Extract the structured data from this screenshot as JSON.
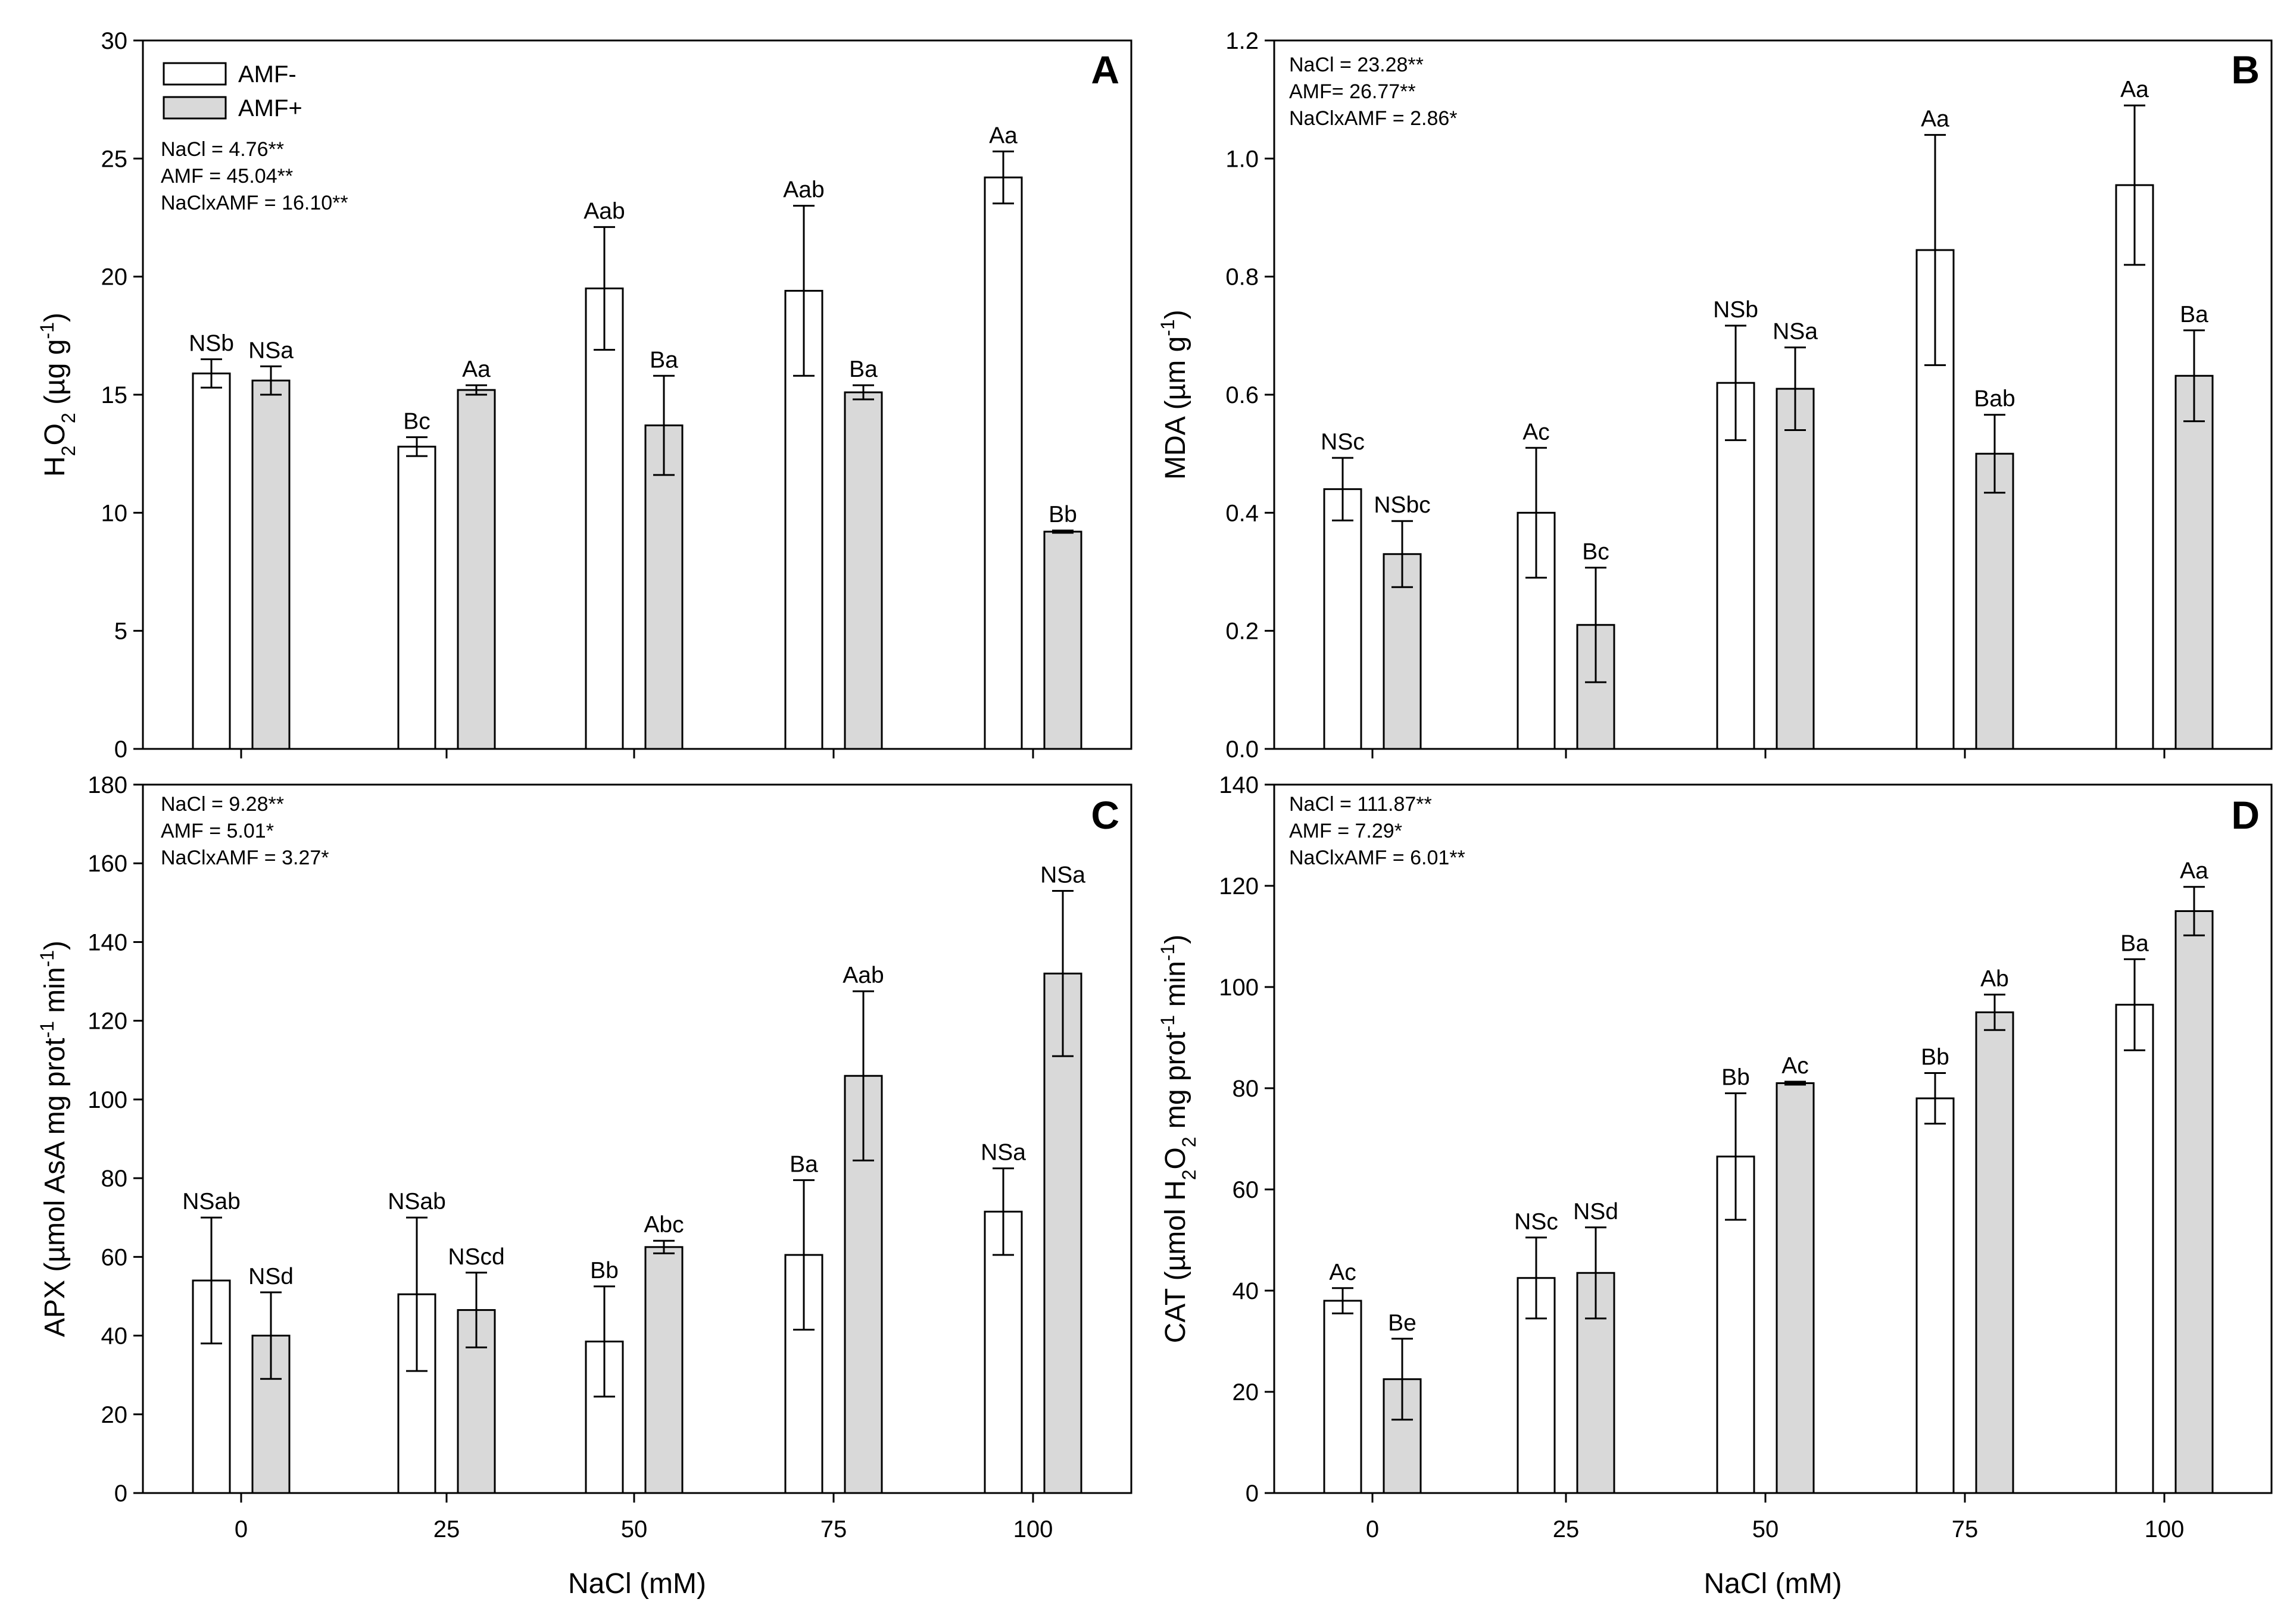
{
  "figure": {
    "legend": {
      "entries": [
        {
          "label": "AMF-",
          "fill": "#ffffff"
        },
        {
          "label": "AMF+",
          "fill": "#d9d9d9"
        }
      ]
    },
    "x_tick_labels": [
      "0",
      "25",
      "50",
      "75",
      "100"
    ]
  },
  "chart_data": [
    {
      "type": "bar",
      "panel": "A",
      "ylabel": "H2O2 (µg g-1)",
      "xlabel": "",
      "ylim": [
        0,
        30
      ],
      "yticks": [
        0,
        5,
        10,
        15,
        20,
        25,
        30
      ],
      "categories": [
        "0",
        "25",
        "50",
        "75",
        "100"
      ],
      "stats": [
        "NaCl = 4.76**",
        "AMF = 45.04**",
        "NaClxAMF = 16.10**"
      ],
      "series": [
        {
          "name": "AMF-",
          "values": [
            15.9,
            12.8,
            19.5,
            19.4,
            24.2
          ],
          "errors": [
            0.6,
            0.4,
            2.6,
            3.6,
            1.1
          ],
          "labels": [
            "NSb",
            "Bc",
            "Aab",
            "Aab",
            "Aa"
          ]
        },
        {
          "name": "AMF+",
          "values": [
            15.6,
            15.2,
            13.7,
            15.1,
            9.2
          ],
          "errors": [
            0.6,
            0.2,
            2.1,
            0.3,
            0.05
          ],
          "labels": [
            "NSa",
            "Aa",
            "Ba",
            "Ba",
            "Bb"
          ]
        }
      ]
    },
    {
      "type": "bar",
      "panel": "B",
      "ylabel": "MDA (µm g-1)",
      "xlabel": "",
      "ylim": [
        0,
        1.2
      ],
      "yticks": [
        "0.0",
        "0.2",
        "0.4",
        "0.6",
        "0.8",
        "1.0",
        "1.2"
      ],
      "categories": [
        "0",
        "25",
        "50",
        "75",
        "100"
      ],
      "stats": [
        "NaCl = 23.28**",
        "AMF= 26.77**",
        "NaClxAMF = 2.86*"
      ],
      "series": [
        {
          "name": "AMF-",
          "values": [
            0.44,
            0.4,
            0.62,
            0.845,
            0.955
          ],
          "errors": [
            0.053,
            0.11,
            0.097,
            0.195,
            0.135
          ],
          "labels": [
            "NSc",
            "Ac",
            "NSb",
            "Aa",
            "Aa"
          ]
        },
        {
          "name": "AMF+",
          "values": [
            0.33,
            0.21,
            0.61,
            0.5,
            0.632
          ],
          "errors": [
            0.056,
            0.097,
            0.07,
            0.066,
            0.077
          ],
          "labels": [
            "NSbc",
            "Bc",
            "NSa",
            "Bab",
            "Ba"
          ]
        }
      ]
    },
    {
      "type": "bar",
      "panel": "C",
      "ylabel": "APX (µmol AsA mg prot-1 min-1)",
      "xlabel": "NaCl (mM)",
      "ylim": [
        0,
        180
      ],
      "yticks": [
        0,
        20,
        40,
        60,
        80,
        100,
        120,
        140,
        160,
        180
      ],
      "categories": [
        "0",
        "25",
        "50",
        "75",
        "100"
      ],
      "stats": [
        "NaCl = 9.28**",
        "AMF = 5.01*",
        "NaClxAMF = 3.27*"
      ],
      "series": [
        {
          "name": "AMF-",
          "values": [
            54,
            50.5,
            38.5,
            60.5,
            71.5
          ],
          "errors": [
            16,
            19.5,
            14,
            19,
            11
          ],
          "labels": [
            "NSab",
            "NSab",
            "Bb",
            "Ba",
            "NSa"
          ]
        },
        {
          "name": "AMF+",
          "values": [
            40,
            46.5,
            62.5,
            106,
            132
          ],
          "errors": [
            11,
            9.5,
            1.6,
            21.5,
            21
          ],
          "labels": [
            "NSd",
            "NScd",
            "Abc",
            "Aab",
            "NSa"
          ]
        }
      ]
    },
    {
      "type": "bar",
      "panel": "D",
      "ylabel": "CAT (µmol H2O2 mg prot-1 min-1)",
      "xlabel": "NaCl (mM)",
      "ylim": [
        0,
        140
      ],
      "yticks": [
        0,
        20,
        40,
        60,
        80,
        100,
        120,
        140
      ],
      "categories": [
        "0",
        "25",
        "50",
        "75",
        "100"
      ],
      "stats": [
        "NaCl = 111.87**",
        "AMF = 7.29*",
        "NaClxAMF = 6.01**"
      ],
      "series": [
        {
          "name": "AMF-",
          "values": [
            38,
            42.5,
            66.5,
            78,
            96.5
          ],
          "errors": [
            2.5,
            8,
            12.5,
            5,
            9
          ],
          "labels": [
            "Ac",
            "NSc",
            "Bb",
            "Bb",
            "Ba"
          ]
        },
        {
          "name": "AMF+",
          "values": [
            22.5,
            43.5,
            81,
            95,
            115
          ],
          "errors": [
            8,
            9,
            0.3,
            3.5,
            4.8
          ],
          "labels": [
            "Be",
            "NSd",
            "Ac",
            "Ab",
            "Aa"
          ]
        }
      ]
    }
  ]
}
